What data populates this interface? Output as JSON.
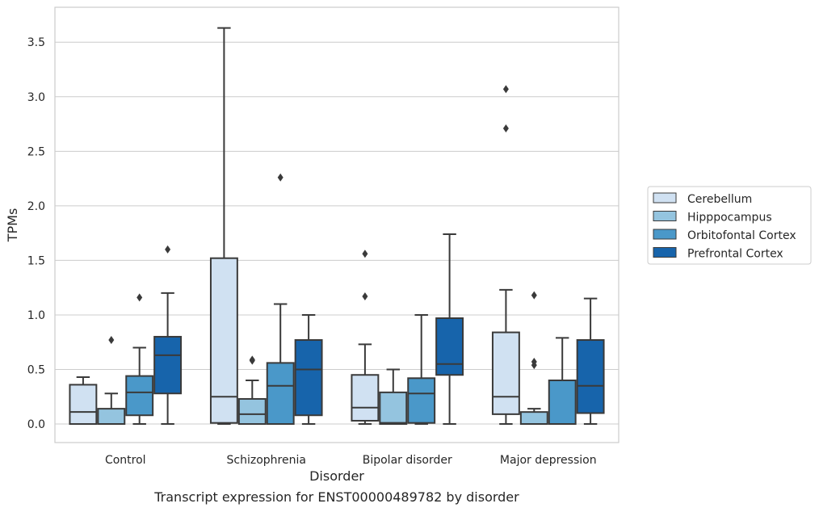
{
  "caption": "Transcript expression for ENST00000489782 by disorder",
  "chart_data": {
    "type": "boxplot",
    "xlabel": "Disorder",
    "ylabel": "TPMs",
    "ylim": [
      -0.17,
      3.82
    ],
    "yticks": [
      "0.0",
      "0.5",
      "1.0",
      "1.5",
      "2.0",
      "2.5",
      "3.0",
      "3.5"
    ],
    "ytick_values": [
      0,
      0.5,
      1.0,
      1.5,
      2.0,
      2.5,
      3.0,
      3.5
    ],
    "grid": "horizontal",
    "legend_placement": "right",
    "categories": [
      "Control",
      "Schizophrenia",
      "Bipolar disorder",
      "Major depression"
    ],
    "series": [
      {
        "name": "Cerebellum",
        "color": "#d0e1f2",
        "boxes": [
          {
            "whislo": 0.0,
            "q1": 0.0,
            "med": 0.11,
            "q3": 0.36,
            "whishi": 0.43,
            "fliers": []
          },
          {
            "whislo": 0.0,
            "q1": 0.01,
            "med": 0.25,
            "q3": 1.52,
            "whishi": 3.63,
            "fliers": []
          },
          {
            "whislo": 0.0,
            "q1": 0.03,
            "med": 0.15,
            "q3": 0.45,
            "whishi": 0.73,
            "fliers": [
              1.17,
              1.56
            ]
          },
          {
            "whislo": 0.0,
            "q1": 0.09,
            "med": 0.25,
            "q3": 0.84,
            "whishi": 1.23,
            "fliers": [
              2.71,
              3.07
            ]
          }
        ]
      },
      {
        "name": "Hipppocampus",
        "color": "#94c4df",
        "boxes": [
          {
            "whislo": 0.0,
            "q1": 0.0,
            "med": 0.0,
            "q3": 0.14,
            "whishi": 0.28,
            "fliers": [
              0.77
            ]
          },
          {
            "whislo": 0.0,
            "q1": 0.0,
            "med": 0.09,
            "q3": 0.23,
            "whishi": 0.4,
            "fliers": [
              0.58,
              0.59
            ]
          },
          {
            "whislo": 0.0,
            "q1": 0.0,
            "med": 0.01,
            "q3": 0.29,
            "whishi": 0.5,
            "fliers": []
          },
          {
            "whislo": 0.0,
            "q1": 0.0,
            "med": 0.0,
            "q3": 0.11,
            "whishi": 0.14,
            "fliers": [
              0.54,
              0.57,
              1.18
            ]
          }
        ]
      },
      {
        "name": "Orbitofontal Cortex",
        "color": "#4a98c9",
        "boxes": [
          {
            "whislo": 0.0,
            "q1": 0.08,
            "med": 0.29,
            "q3": 0.44,
            "whishi": 0.7,
            "fliers": [
              1.16
            ]
          },
          {
            "whislo": 0.0,
            "q1": 0.0,
            "med": 0.35,
            "q3": 0.56,
            "whishi": 1.1,
            "fliers": [
              2.26
            ]
          },
          {
            "whislo": 0.0,
            "q1": 0.01,
            "med": 0.28,
            "q3": 0.42,
            "whishi": 1.0,
            "fliers": []
          },
          {
            "whislo": 0.0,
            "q1": 0.0,
            "med": 0.0,
            "q3": 0.4,
            "whishi": 0.79,
            "fliers": []
          }
        ]
      },
      {
        "name": "Prefrontal Cortex",
        "color": "#1764ab",
        "boxes": [
          {
            "whislo": 0.0,
            "q1": 0.28,
            "med": 0.63,
            "q3": 0.8,
            "whishi": 1.2,
            "fliers": [
              1.6
            ]
          },
          {
            "whislo": 0.0,
            "q1": 0.08,
            "med": 0.5,
            "q3": 0.77,
            "whishi": 1.0,
            "fliers": []
          },
          {
            "whislo": 0.0,
            "q1": 0.45,
            "med": 0.55,
            "q3": 0.97,
            "whishi": 1.74,
            "fliers": []
          },
          {
            "whislo": 0.0,
            "q1": 0.1,
            "med": 0.35,
            "q3": 0.77,
            "whishi": 1.15,
            "fliers": []
          }
        ]
      }
    ]
  }
}
